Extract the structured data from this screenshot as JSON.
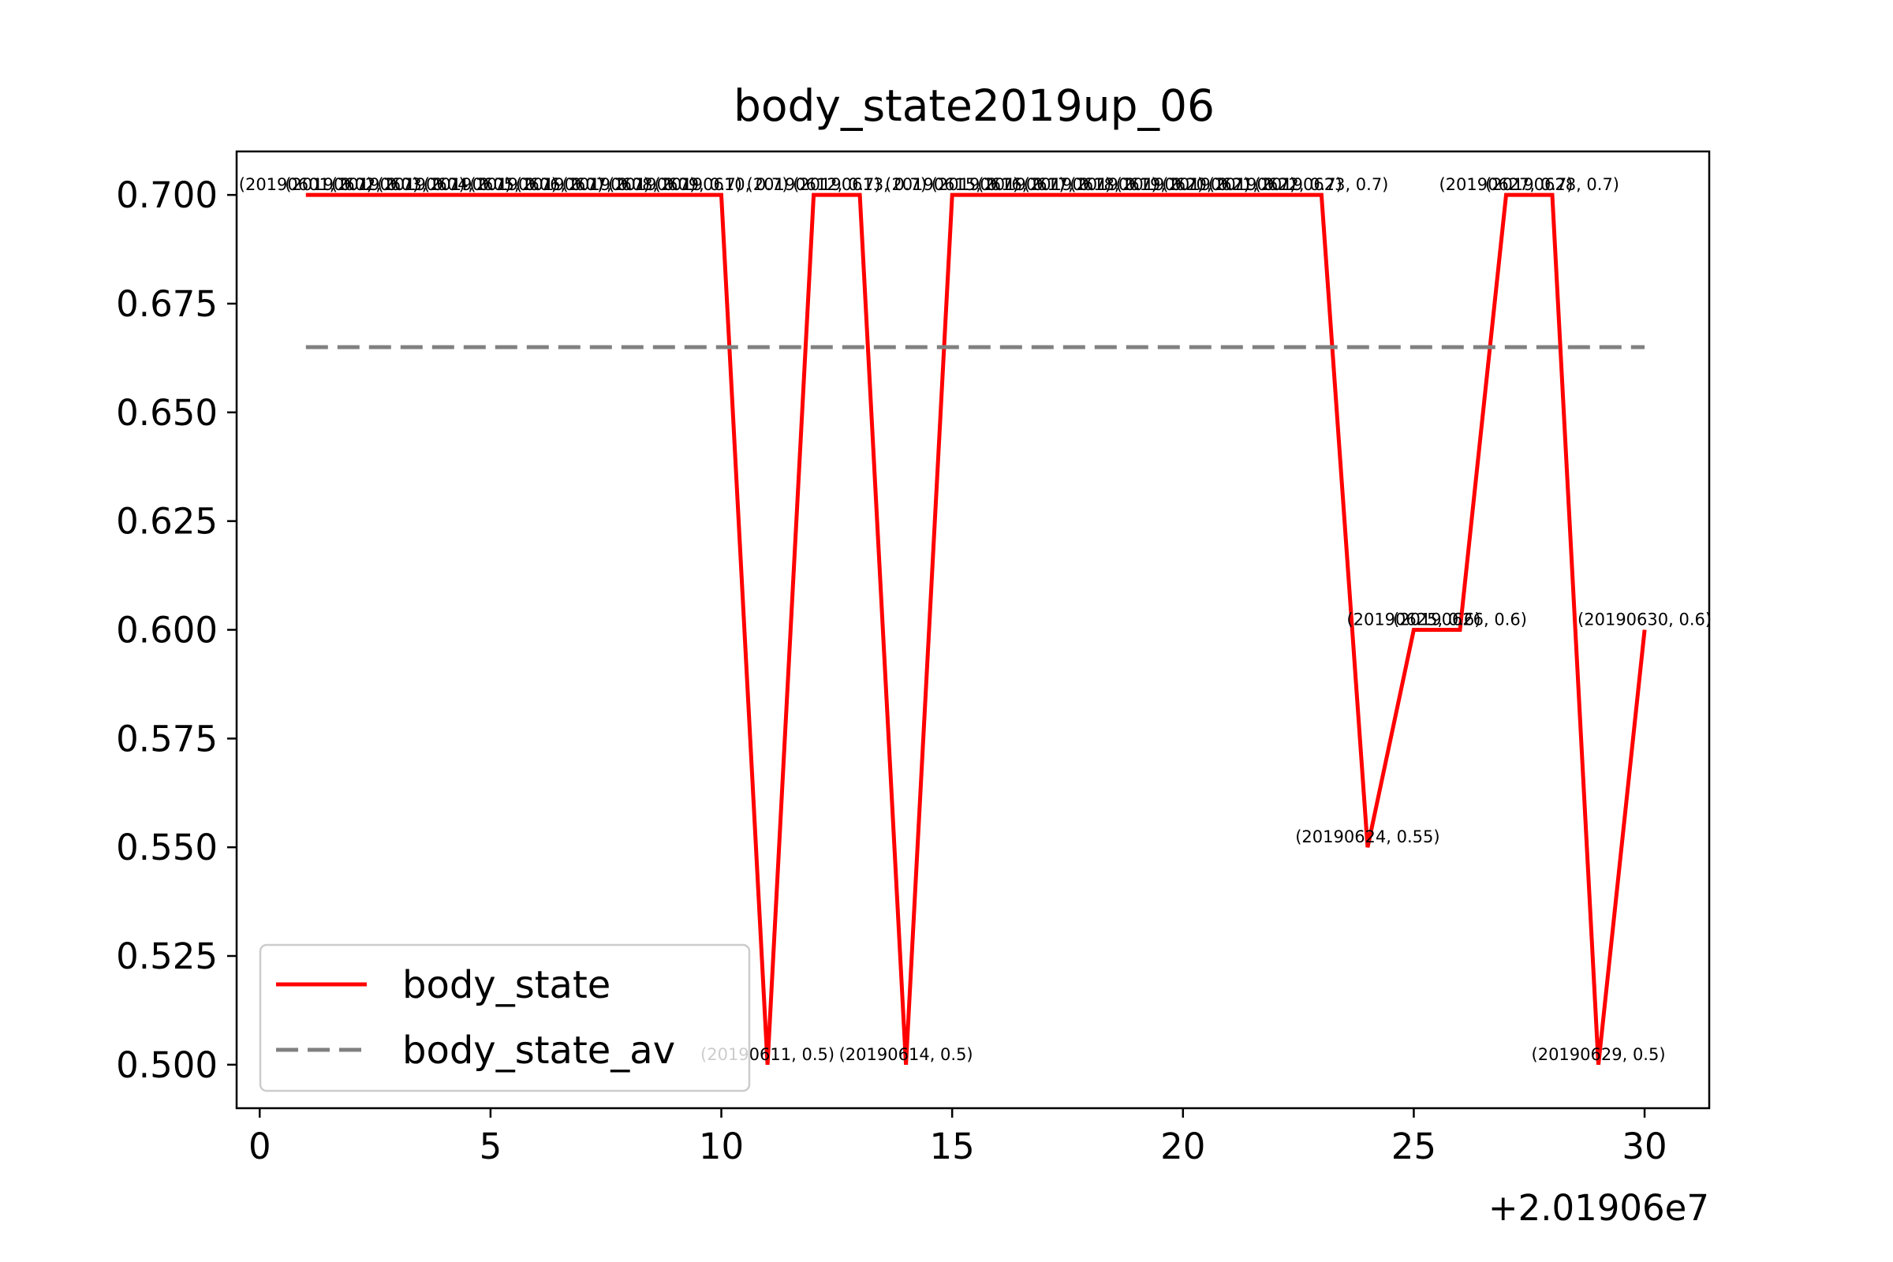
{
  "chart_data": {
    "type": "line",
    "title": "body_state2019up_06",
    "xlabel": "",
    "ylabel": "",
    "x_offset_label": "+2.01906e7",
    "xlim": [
      -0.5,
      31.4
    ],
    "ylim": [
      0.49,
      0.71
    ],
    "xticks": [
      0,
      5,
      10,
      15,
      20,
      25,
      30
    ],
    "xtick_labels": [
      "0",
      "5",
      "10",
      "15",
      "20",
      "25",
      "30"
    ],
    "yticks": [
      0.5,
      0.525,
      0.55,
      0.575,
      0.6,
      0.625,
      0.65,
      0.675,
      0.7
    ],
    "ytick_labels": [
      "0.500",
      "0.525",
      "0.550",
      "0.575",
      "0.600",
      "0.625",
      "0.650",
      "0.675",
      "0.700"
    ],
    "grid": false,
    "legend_position": "lower-left",
    "series": [
      {
        "name": "body_state",
        "color": "#ff0000",
        "style": "solid",
        "x": [
          1,
          2,
          3,
          4,
          5,
          6,
          7,
          8,
          9,
          10,
          11,
          12,
          13,
          14,
          15,
          16,
          17,
          18,
          19,
          20,
          21,
          22,
          23,
          24,
          25,
          26,
          27,
          28,
          29,
          30
        ],
        "y": [
          0.7,
          0.7,
          0.7,
          0.7,
          0.7,
          0.7,
          0.7,
          0.7,
          0.7,
          0.7,
          0.5,
          0.7,
          0.7,
          0.5,
          0.7,
          0.7,
          0.7,
          0.7,
          0.7,
          0.7,
          0.7,
          0.7,
          0.7,
          0.55,
          0.6,
          0.6,
          0.7,
          0.7,
          0.5,
          0.6
        ],
        "annotations": [
          "(20190601, 0.7)",
          "(20190602, 0.7)",
          "(20190603, 0.7)",
          "(20190604, 0.7)",
          "(20190605, 0.7)",
          "(20190606, 0.7)",
          "(20190607, 0.7)",
          "(20190608, 0.7)",
          "(20190609, 0.7)",
          "(20190610, 0.7)",
          "(20190611, 0.5)",
          "(20190612, 0.7)",
          "(20190613, 0.7)",
          "(20190614, 0.5)",
          "(20190615, 0.7)",
          "(20190616, 0.7)",
          "(20190617, 0.7)",
          "(20190618, 0.7)",
          "(20190619, 0.7)",
          "(20190620, 0.7)",
          "(20190621, 0.7)",
          "(20190622, 0.7)",
          "(20190623, 0.7)",
          "(20190624, 0.55)",
          "(20190625, 0.6)",
          "(20190626, 0.6)",
          "(20190627, 0.7)",
          "(20190628, 0.7)",
          "(20190629, 0.5)",
          "(20190630, 0.6)"
        ]
      },
      {
        "name": "body_state_av",
        "color": "#808080",
        "style": "dashed",
        "x": [
          1,
          30
        ],
        "y": [
          0.665,
          0.665
        ]
      }
    ]
  }
}
